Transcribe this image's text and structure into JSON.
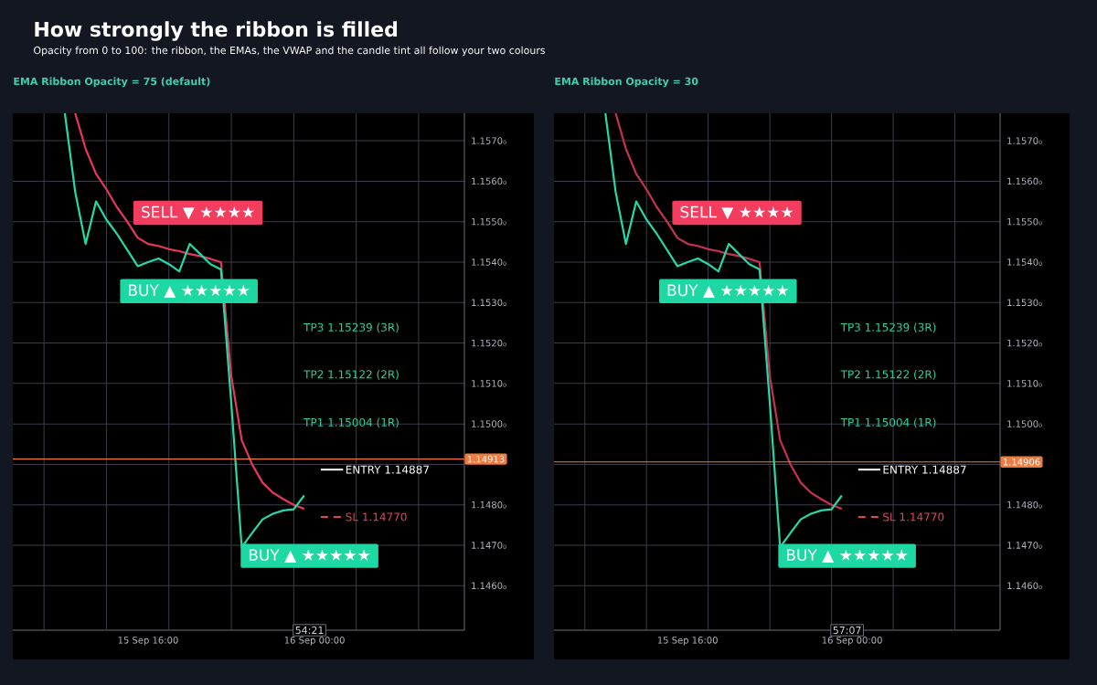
{
  "chart_data": [
    {
      "type": "line",
      "title": "EMA Ribbon Opacity = 75 (default)",
      "annotations": [
        "How strongly the ribbon is filled",
        "Opacity from 0 to 100: the ribbon, the EMAs, the VWAP and the candle tint all follow your two colours",
        "SELL ▼ ★★★★",
        "BUY ▲ ★★★★★",
        "BUY ▲ ★★★★★",
        "TP3 1.15239  (3R)",
        "TP2 1.15122  (2R)",
        "TP1 1.15004  (1R)",
        "54:21"
      ],
      "categories": [
        null,
        null,
        null,
        null,
        null,
        null,
        null,
        null,
        null,
        null,
        null,
        null,
        "15 Sep 16:00",
        null,
        null,
        null,
        null,
        null,
        null,
        null,
        null,
        null,
        null,
        null,
        null,
        null,
        null,
        null,
        "16 Sep 00:00",
        null,
        null,
        null,
        null,
        null,
        null,
        null,
        null,
        null,
        null,
        null,
        null,
        null,
        null
      ],
      "series": [
        {
          "color": "#e8385a",
          "values": [
            null,
            null,
            null,
            null,
            null,
            1.15768,
            1.1568,
            1.15618,
            1.1558,
            1.15536,
            1.155,
            1.1546,
            1.15445,
            1.1544,
            1.15432,
            1.15427,
            1.1542,
            1.15415,
            1.15408,
            1.154,
            1.15118,
            1.1496,
            1.149,
            1.14855,
            1.1483,
            1.14814,
            1.148,
            1.1479,
            null,
            null,
            null,
            null,
            null,
            null,
            null,
            null,
            null,
            null,
            null,
            null,
            null,
            null,
            null
          ]
        },
        {
          "color": "#26d9a8",
          "values": [
            null,
            null,
            null,
            null,
            1.15768,
            1.15573,
            1.15445,
            1.1555,
            1.15505,
            1.1547,
            1.1543,
            1.1539,
            1.154,
            1.15409,
            1.15395,
            1.15377,
            1.15445,
            1.1542,
            1.15395,
            1.15382,
            1.1505,
            1.14695,
            1.1473,
            1.14764,
            1.14778,
            1.14786,
            1.14789,
            1.14823,
            null,
            null,
            null,
            null,
            null,
            null,
            null,
            null,
            null,
            null,
            null,
            null,
            null,
            null,
            null
          ]
        }
      ],
      "ref_lines": [
        {
          "axis": "y",
          "value": 1.14913,
          "label": "1.14913",
          "color": "#f07b3f",
          "line_style": "solid"
        },
        {
          "axis": "y",
          "value": 1.14887,
          "label": "ENTRY  1.14887",
          "color": "#ffffff",
          "line_style": "solid"
        },
        {
          "axis": "y",
          "value": 1.1477,
          "label": "SL  1.14770",
          "color": "#e0455a",
          "line_style": "dashed"
        }
      ],
      "ylim": [
        1.1449,
        1.15768
      ],
      "yticks": [
        {
          "value": 1.146,
          "label": "1.1460₀"
        },
        {
          "value": 1.147,
          "label": "1.1470₀"
        },
        {
          "value": 1.148,
          "label": "1.1480₀"
        },
        {
          "value": 1.149,
          "label": null
        },
        {
          "value": 1.15,
          "label": "1.1500₀"
        },
        {
          "value": 1.151,
          "label": "1.1510₀"
        },
        {
          "value": 1.152,
          "label": "1.1520₀"
        },
        {
          "value": 1.153,
          "label": "1.1530₀"
        },
        {
          "value": 1.154,
          "label": "1.1540₀"
        },
        {
          "value": 1.155,
          "label": "1.1550₀"
        },
        {
          "value": 1.156,
          "label": "1.1560₀"
        },
        {
          "value": 1.157,
          "label": "1.1570₀"
        }
      ],
      "grid": true
    },
    {
      "type": "line",
      "title": "EMA Ribbon Opacity = 30",
      "annotations": [
        "SELL ▼ ★★★★",
        "BUY ▲ ★★★★★",
        "BUY ▲ ★★★★★",
        "TP3 1.15239  (3R)",
        "TP2 1.15122  (2R)",
        "TP1 1.15004  (1R)",
        "57:07"
      ],
      "categories": [
        null,
        null,
        null,
        null,
        null,
        null,
        null,
        null,
        null,
        null,
        null,
        null,
        "15 Sep 16:00",
        null,
        null,
        null,
        null,
        null,
        null,
        null,
        null,
        null,
        null,
        null,
        null,
        null,
        null,
        null,
        "16 Sep 00:00",
        null,
        null,
        null,
        null,
        null,
        null,
        null,
        null,
        null,
        null,
        null,
        null,
        null,
        null
      ],
      "series": [
        {
          "color": "#c8324f",
          "values": [
            null,
            null,
            null,
            null,
            null,
            1.15768,
            1.1568,
            1.15618,
            1.1558,
            1.15536,
            1.155,
            1.1546,
            1.15445,
            1.1544,
            1.15432,
            1.15427,
            1.1542,
            1.15415,
            1.15408,
            1.154,
            1.15118,
            1.1496,
            1.149,
            1.14855,
            1.1483,
            1.14814,
            1.148,
            1.1479,
            null,
            null,
            null,
            null,
            null,
            null,
            null,
            null,
            null,
            null,
            null,
            null,
            null,
            null,
            null
          ]
        },
        {
          "color": "#26d9a8",
          "values": [
            null,
            null,
            null,
            null,
            1.15768,
            1.15573,
            1.15445,
            1.1555,
            1.15505,
            1.1547,
            1.1543,
            1.1539,
            1.154,
            1.15409,
            1.15395,
            1.15377,
            1.15445,
            1.1542,
            1.15395,
            1.15382,
            1.1505,
            1.14695,
            1.1473,
            1.14764,
            1.14778,
            1.14786,
            1.14789,
            1.14823,
            null,
            null,
            null,
            null,
            null,
            null,
            null,
            null,
            null,
            null,
            null,
            null,
            null,
            null,
            null
          ]
        }
      ],
      "ref_lines": [
        {
          "axis": "y",
          "value": 1.14906,
          "label": "1.14906",
          "color": "#f07b3f",
          "line_style": "solid"
        },
        {
          "axis": "y",
          "value": 1.14887,
          "label": "ENTRY  1.14887",
          "color": "#ffffff",
          "line_style": "solid"
        },
        {
          "axis": "y",
          "value": 1.1477,
          "label": "SL  1.14770",
          "color": "#e0455a",
          "line_style": "dashed"
        }
      ],
      "ylim": [
        1.1449,
        1.15768
      ],
      "yticks": [
        {
          "value": 1.146,
          "label": "1.1460₀"
        },
        {
          "value": 1.147,
          "label": "1.1470₀"
        },
        {
          "value": 1.148,
          "label": "1.1480₀"
        },
        {
          "value": 1.149,
          "label": null
        },
        {
          "value": 1.15,
          "label": "1.1500₀"
        },
        {
          "value": 1.151,
          "label": "1.1510₀"
        },
        {
          "value": 1.152,
          "label": "1.1520₀"
        },
        {
          "value": 1.153,
          "label": "1.1530₀"
        },
        {
          "value": 1.154,
          "label": "1.1540₀"
        },
        {
          "value": 1.155,
          "label": "1.1550₀"
        },
        {
          "value": 1.156,
          "label": "1.1560₀"
        },
        {
          "value": 1.157,
          "label": "1.1570₀"
        }
      ],
      "grid": true
    }
  ]
}
